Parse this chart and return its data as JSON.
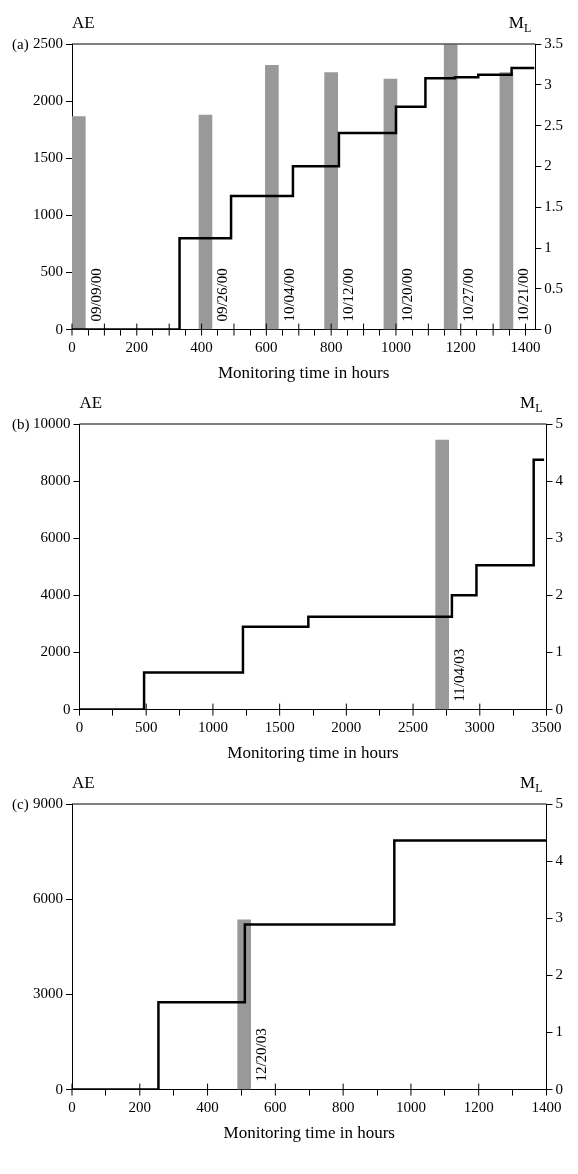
{
  "chart_data": [
    {
      "type": "step",
      "title": "(a)",
      "xlabel": "Monitoring time in hours",
      "ylabel": "AE",
      "y2label": "M$_{L}$",
      "xlim": [
        0,
        1430
      ],
      "xticks": [
        0,
        {
          "value": 100,
          "label": null
        },
        200,
        {
          "value": 300,
          "label": null
        },
        400,
        {
          "value": 500,
          "label": null
        },
        600,
        {
          "value": 700,
          "label": null
        },
        800,
        {
          "value": 900,
          "label": null
        },
        1000,
        {
          "value": 1100,
          "label": null
        },
        1200,
        {
          "value": 1300,
          "label": null
        },
        1400
      ],
      "ylim": [
        0,
        2500
      ],
      "yticks": [
        0,
        500,
        1000,
        1500,
        2000,
        2500
      ],
      "y2lim": [
        0,
        3.5
      ],
      "y2ticks": [
        0,
        0.5,
        1,
        1.5,
        2,
        2.5,
        3,
        3.5
      ],
      "series": [
        {
          "color": "#000000",
          "x": [
            0,
            332,
            491,
            682,
            824,
            1000,
            1091,
            1182,
            1254,
            1357,
            1427
          ],
          "values": [
            0,
            800,
            1170,
            1430,
            1720,
            1950,
            2200,
            2210,
            2230,
            2290,
            2290
          ]
        },
        {
          "type": "bar",
          "axis": "y2",
          "color": "#999999",
          "x": [
            21,
            412,
            617,
            800,
            983,
            1169,
            1341
          ],
          "values": [
            2.61,
            2.63,
            3.24,
            3.15,
            3.07,
            3.49,
            3.15
          ]
        }
      ],
      "annotations": [
        "09/09/00",
        "09/26/00",
        "10/04/00",
        "10/12/00",
        "10/20/00",
        "10/27/00",
        "10/21/00"
      ]
    },
    {
      "type": "step",
      "title": "(b)",
      "xlabel": "Monitoring time in hours",
      "ylabel": "AE",
      "y2label": "M$_{L}$",
      "xlim": [
        0,
        3500
      ],
      "xticks": [
        0,
        500,
        1000,
        1500,
        2000,
        2500,
        3000,
        3500
      ],
      "ylim": [
        0,
        10000
      ],
      "yticks": [
        0,
        2000,
        4000,
        6000,
        8000,
        10000
      ],
      "y2lim": [
        0,
        5
      ],
      "y2ticks": [
        0,
        1,
        2,
        3,
        4,
        5
      ],
      "series": [
        {
          "color": "#000000",
          "x": [
            0,
            484,
            1225,
            1715,
            2791,
            2975,
            3404,
            3482
          ],
          "values": [
            0,
            1300,
            2900,
            3250,
            4000,
            5050,
            8750,
            8750
          ]
        },
        {
          "type": "bar",
          "axis": "y2",
          "color": "#999999",
          "x": [
            2718
          ],
          "values": [
            4.72
          ]
        }
      ],
      "annotations": [
        "11/04/03"
      ]
    },
    {
      "type": "step",
      "title": "(c)",
      "xlabel": "Monitoring time in hours",
      "ylabel": "AE",
      "y2label": "M$_{L}$",
      "xlim": [
        0,
        1400
      ],
      "xticks": [
        0,
        200,
        400,
        600,
        800,
        1000,
        1200,
        1400
      ],
      "ylim": [
        0,
        9000
      ],
      "yticks": [
        0,
        3000,
        6000,
        9000
      ],
      "y2lim": [
        0,
        5
      ],
      "y2ticks": [
        0,
        1,
        2,
        3,
        4,
        5
      ],
      "series": [
        {
          "color": "#000000",
          "x": [
            0,
            255,
            510,
            951,
            1400
          ],
          "values": [
            0,
            2750,
            5200,
            7850,
            7850
          ]
        },
        {
          "type": "bar",
          "axis": "y2",
          "color": "#999999",
          "x": [
            508
          ],
          "values": [
            2.97
          ]
        }
      ],
      "annotations": [
        "12/20/03"
      ]
    }
  ]
}
